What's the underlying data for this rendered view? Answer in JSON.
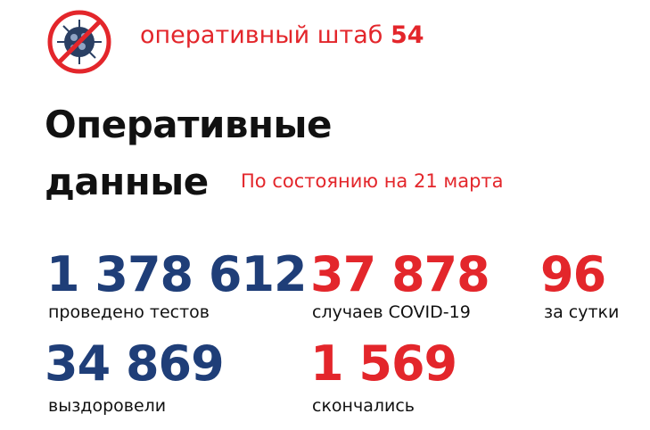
{
  "header": {
    "logo_icon": "no-virus-icon",
    "title": "оперативный штаб",
    "number": "54"
  },
  "title_line1": "Оперативные",
  "title_line2": "данные",
  "date": "По состоянию на 21 марта",
  "stats": [
    {
      "value": "1 378 612",
      "label": "проведено тестов"
    },
    {
      "value": "37 878",
      "label": "случаев COVID-19"
    },
    {
      "value": "96",
      "label": "за сутки"
    },
    {
      "value": "34 869",
      "label": "выздоровели"
    },
    {
      "value": "1 569",
      "label": "скончались"
    }
  ],
  "colors": {
    "blue": "#1f3e78",
    "red": "#e3262b"
  }
}
